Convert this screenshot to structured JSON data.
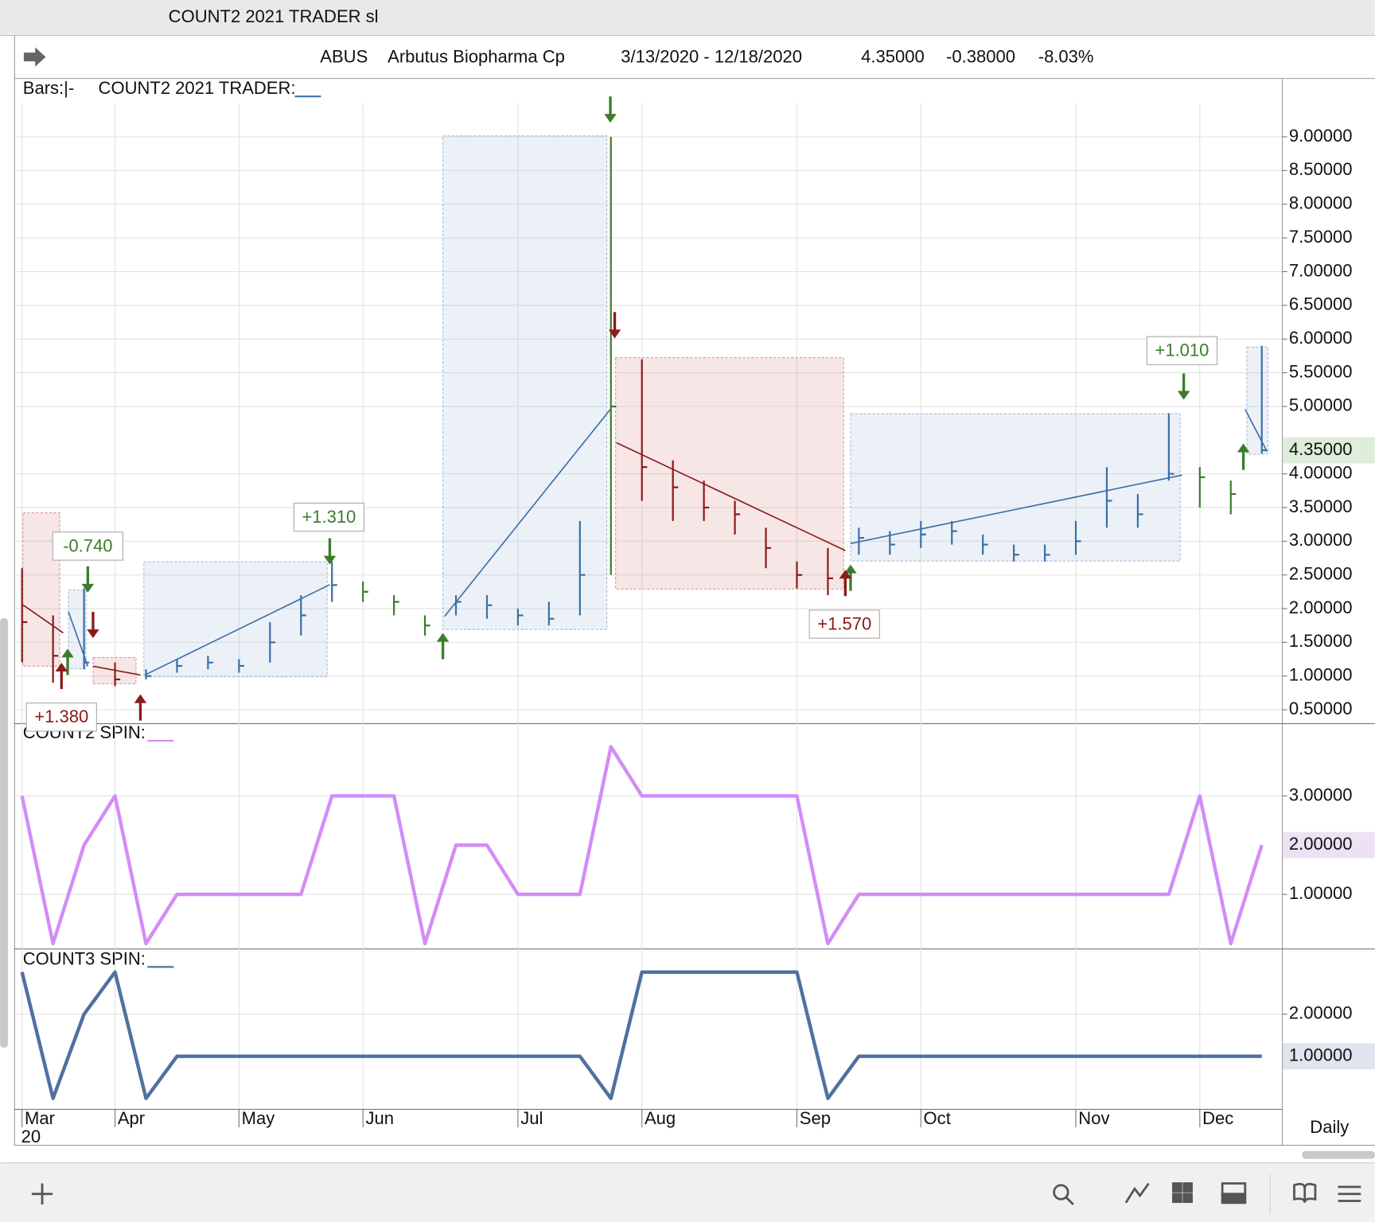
{
  "window_title": "COUNT2 2021 TRADER sl",
  "header": {
    "symbol": "ABUS",
    "name": "Arbutus Biopharma Cp",
    "range": "3/13/2020 - 12/18/2020",
    "last": "4.35000",
    "change": "-0.38000",
    "change_pct": "-8.03%"
  },
  "footer": {
    "year": "20",
    "period": "Daily"
  },
  "chart_data": [
    {
      "type": "ohlc",
      "bars_label": "Bars:|-",
      "title": "COUNT2 2021 TRADER:",
      "categories": [
        "Mar",
        null,
        null,
        "Apr",
        null,
        null,
        null,
        "May",
        null,
        null,
        null,
        "Jun",
        null,
        null,
        null,
        null,
        "Jul",
        null,
        null,
        null,
        "Aug",
        null,
        null,
        null,
        null,
        "Sep",
        null,
        null,
        null,
        "Oct",
        null,
        null,
        null,
        null,
        "Nov",
        null,
        null,
        null,
        "Dec",
        null,
        null
      ],
      "close": [
        1.8,
        1.3,
        1.2,
        0.95,
        1.0,
        1.15,
        1.2,
        1.15,
        1.5,
        1.9,
        2.35,
        2.25,
        2.1,
        1.75,
        2.1,
        2.05,
        1.9,
        1.85,
        2.5,
        5.0,
        4.1,
        3.8,
        3.5,
        3.4,
        2.9,
        2.5,
        2.45,
        3.05,
        2.95,
        3.1,
        3.15,
        2.95,
        2.8,
        2.8,
        3.0,
        3.6,
        3.4,
        4.0,
        3.95,
        3.7,
        4.35
      ],
      "high": [
        2.6,
        1.9,
        2.3,
        1.2,
        1.1,
        1.25,
        1.3,
        1.25,
        1.8,
        2.2,
        2.7,
        2.4,
        2.2,
        1.9,
        2.2,
        2.2,
        2.0,
        2.1,
        3.3,
        9.0,
        5.7,
        4.2,
        3.9,
        3.6,
        3.2,
        2.7,
        2.9,
        3.2,
        3.15,
        3.3,
        3.3,
        3.1,
        2.95,
        2.95,
        3.3,
        4.1,
        3.7,
        4.9,
        4.1,
        3.9,
        5.9
      ],
      "low": [
        1.2,
        0.9,
        1.1,
        0.85,
        0.95,
        1.05,
        1.1,
        1.05,
        1.2,
        1.6,
        2.1,
        2.1,
        1.9,
        1.6,
        1.9,
        1.85,
        1.75,
        1.75,
        1.9,
        2.5,
        3.6,
        3.3,
        3.3,
        3.1,
        2.6,
        2.3,
        2.2,
        2.8,
        2.8,
        2.9,
        2.95,
        2.8,
        2.7,
        2.7,
        2.8,
        3.2,
        3.2,
        3.9,
        3.5,
        3.4,
        4.3
      ],
      "bar_colors": [
        "#8b1a1a",
        "#8b1a1a",
        "#3b6fa8",
        "#8b1a1a",
        "#3b6fa8",
        "#3b6fa8",
        "#3b6fa8",
        "#3b6fa8",
        "#3b6fa8",
        "#3b6fa8",
        "#3b6fa8",
        "#3a7d2a",
        "#3a7d2a",
        "#3a7d2a",
        "#3b6fa8",
        "#3b6fa8",
        "#3b6fa8",
        "#3b6fa8",
        "#3b6fa8",
        "#3a7d2a",
        "#8b1a1a",
        "#8b1a1a",
        "#8b1a1a",
        "#8b1a1a",
        "#8b1a1a",
        "#8b1a1a",
        "#8b1a1a",
        "#3b6fa8",
        "#3b6fa8",
        "#3b6fa8",
        "#3b6fa8",
        "#3b6fa8",
        "#3b6fa8",
        "#3b6fa8",
        "#3b6fa8",
        "#3b6fa8",
        "#3b6fa8",
        "#3b6fa8",
        "#3a7d2a",
        "#3a7d2a",
        "#3b6fa8"
      ],
      "ylim": [
        0.3,
        9.86
      ],
      "yticks": [
        {
          "value": 0.5,
          "label": "0.50000"
        },
        {
          "value": 1.0,
          "label": "1.00000"
        },
        {
          "value": 1.5,
          "label": "1.50000"
        },
        {
          "value": 2.0,
          "label": "2.00000"
        },
        {
          "value": 2.5,
          "label": "2.50000"
        },
        {
          "value": 3.0,
          "label": "3.00000"
        },
        {
          "value": 3.5,
          "label": "3.50000"
        },
        {
          "value": 4.0,
          "label": "4.00000"
        },
        {
          "value": 5.0,
          "label": "5.00000"
        },
        {
          "value": 5.5,
          "label": "5.50000"
        },
        {
          "value": 6.0,
          "label": "6.00000"
        },
        {
          "value": 6.5,
          "label": "6.50000"
        },
        {
          "value": 7.0,
          "label": "7.00000"
        },
        {
          "value": 7.5,
          "label": "7.50000"
        },
        {
          "value": 8.0,
          "label": "8.00000"
        },
        {
          "value": 8.5,
          "label": "8.50000"
        },
        {
          "value": 9.0,
          "label": "9.00000"
        }
      ],
      "annotations": [
        {
          "text": "+1.380",
          "color": "#8b1a1a"
        },
        {
          "text": "-0.740",
          "color": "#3a7d2a"
        },
        {
          "text": "+1.310",
          "color": "#3a7d2a"
        },
        {
          "text": "+1.570",
          "color": "#8b1a1a"
        },
        {
          "text": "+1.010",
          "color": "#3a7d2a"
        }
      ]
    },
    {
      "type": "line",
      "title": "COUNT2 SPIN:",
      "color": "#d38cf5",
      "values": [
        3,
        0,
        2,
        3,
        0,
        1,
        1,
        1,
        1,
        1,
        3,
        3,
        3,
        0,
        2,
        2,
        1,
        1,
        1,
        4,
        3,
        3,
        3,
        3,
        3,
        3,
        0,
        1,
        1,
        1,
        1,
        1,
        1,
        1,
        1,
        1,
        1,
        1,
        3,
        0,
        2
      ],
      "ylim": [
        -0.1,
        4.46
      ],
      "yticks": [
        {
          "value": 1,
          "label": "1.00000"
        },
        {
          "value": 3,
          "label": "3.00000"
        }
      ],
      "last_label": "2.00000"
    },
    {
      "type": "line",
      "title": "COUNT3 SPIN:",
      "color": "#4f71a0",
      "values": [
        3,
        0,
        2,
        3,
        0,
        1,
        1,
        1,
        1,
        1,
        1,
        1,
        1,
        1,
        1,
        1,
        1,
        1,
        1,
        0,
        3,
        3,
        3,
        3,
        3,
        3,
        0,
        1,
        1,
        1,
        1,
        1,
        1,
        1,
        1,
        1,
        1,
        1,
        1,
        1,
        1
      ],
      "ylim": [
        -0.25,
        3.54
      ],
      "yticks": [
        {
          "value": 2,
          "label": "2.00000"
        }
      ],
      "last_label": "1.00000"
    }
  ]
}
